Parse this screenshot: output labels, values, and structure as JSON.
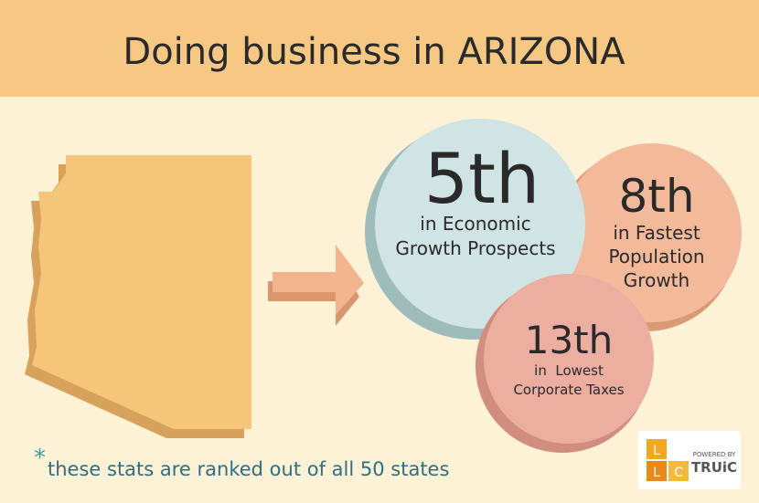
{
  "header": {
    "title": "Doing business in ARIZONA"
  },
  "stats": [
    {
      "rank": "5th",
      "lines": [
        "in Economic",
        "Growth Prospects"
      ]
    },
    {
      "rank": "8th",
      "lines": [
        "in Fastest",
        "Population",
        "Growth"
      ]
    },
    {
      "rank": "13th",
      "lines": [
        "in  Lowest",
        "Corporate Taxes"
      ]
    }
  ],
  "footnote": {
    "marker": "*",
    "text": "these stats are ranked out of all 50 states"
  },
  "logo": {
    "caption": "POWERED BY",
    "brand": "TRUiC",
    "letters": [
      "L",
      "L",
      "C"
    ]
  }
}
